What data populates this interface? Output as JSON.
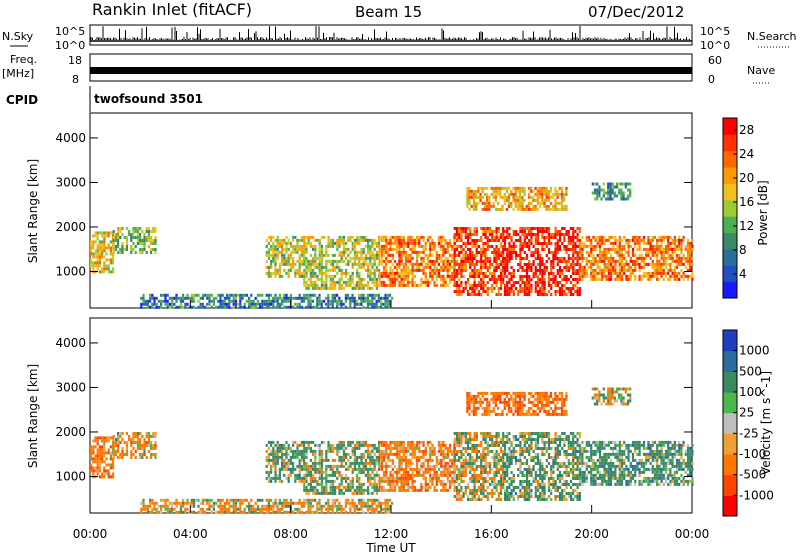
{
  "header": {
    "station": "Rankin Inlet (fitACF)",
    "beam": "Beam 15",
    "date": "07/Dec/2012"
  },
  "top_panels": {
    "nsky_label": "N.Sky",
    "nsky_ticks": [
      "10^5",
      "10^0"
    ],
    "nsearch_label": "N.Search",
    "nsearch_ticks": [
      "10^5",
      "10^0"
    ],
    "freq_label_1": "Freq.",
    "freq_label_2": "[MHz]",
    "freq_ticks": [
      "18",
      "8"
    ],
    "nave_label": "Nave",
    "nave_ticks": [
      "60",
      "0"
    ],
    "cpid_label": "CPID",
    "cpid_value": "twofsound 3501"
  },
  "chart_data": [
    {
      "type": "heatmap",
      "panel": "power",
      "title": "",
      "xlabel": "Time UT",
      "ylabel": "Slant Range [km]",
      "x_ticks": [
        "00:00",
        "04:00",
        "08:00",
        "12:00",
        "16:00",
        "20:00",
        "00:00"
      ],
      "xlim_hours": [
        0,
        24
      ],
      "y_ticks": [
        1000,
        2000,
        3000,
        4000
      ],
      "ylim_km": [
        180,
        4560
      ],
      "colorbar": {
        "label": "Power [dB]",
        "ticks": [
          "4",
          "8",
          "12",
          "16",
          "20",
          "24",
          "28"
        ],
        "range": [
          0,
          30
        ],
        "colors": [
          "#1a1aff",
          "#1f4fbf",
          "#2a6e9a",
          "#3a8a6a",
          "#4caf50",
          "#9acd32",
          "#f0c020",
          "#ff9900",
          "#ff6600",
          "#ff3300",
          "#ff0000"
        ]
      },
      "regions": [
        {
          "t": [
            0.0,
            0.9
          ],
          "r": [
            1000,
            1900
          ],
          "v": 18
        },
        {
          "t": [
            0.9,
            2.6
          ],
          "r": [
            1400,
            2000
          ],
          "v": 14
        },
        {
          "t": [
            7.0,
            8.5
          ],
          "r": [
            900,
            1800
          ],
          "v": 16
        },
        {
          "t": [
            8.5,
            11.5
          ],
          "r": [
            600,
            1800
          ],
          "v": 16
        },
        {
          "t": [
            11.5,
            14.5
          ],
          "r": [
            700,
            1800
          ],
          "v": 22
        },
        {
          "t": [
            14.5,
            16.5
          ],
          "r": [
            500,
            2000
          ],
          "v": 26
        },
        {
          "t": [
            16.5,
            19.5
          ],
          "r": [
            500,
            2000
          ],
          "v": 28
        },
        {
          "t": [
            19.5,
            24.0
          ],
          "r": [
            800,
            1800
          ],
          "v": 22
        },
        {
          "t": [
            2.0,
            12.0
          ],
          "r": [
            200,
            500
          ],
          "v": 8
        },
        {
          "t": [
            15.0,
            19.0
          ],
          "r": [
            2400,
            2900
          ],
          "v": 20
        },
        {
          "t": [
            20.0,
            21.5
          ],
          "r": [
            2600,
            3000
          ],
          "v": 10
        }
      ]
    },
    {
      "type": "heatmap",
      "panel": "velocity",
      "title": "",
      "xlabel": "Time UT",
      "ylabel": "Slant Range [km]",
      "x_ticks": [
        "00:00",
        "04:00",
        "08:00",
        "12:00",
        "16:00",
        "20:00",
        "00:00"
      ],
      "xlim_hours": [
        0,
        24
      ],
      "y_ticks": [
        1000,
        2000,
        3000,
        4000
      ],
      "ylim_km": [
        180,
        4560
      ],
      "colorbar": {
        "label": "Velocity [m s^-1]",
        "ticks": [
          "1000",
          "500",
          "100",
          "25",
          "-25",
          "-100",
          "-500",
          "-1000"
        ],
        "colors": [
          "#1f3fbf",
          "#2a6ea0",
          "#3a8a60",
          "#4cb84c",
          "#bebebe",
          "#f0a030",
          "#ff7700",
          "#ff4400",
          "#ff0000"
        ]
      },
      "regions": [
        {
          "t": [
            0.0,
            0.9
          ],
          "r": [
            1000,
            1900
          ],
          "v": -300
        },
        {
          "t": [
            0.9,
            2.6
          ],
          "r": [
            1400,
            2000
          ],
          "v": -200
        },
        {
          "t": [
            7.0,
            8.5
          ],
          "r": [
            900,
            1800
          ],
          "v": 200
        },
        {
          "t": [
            8.5,
            11.5
          ],
          "r": [
            600,
            1800
          ],
          "v": 150
        },
        {
          "t": [
            11.5,
            14.5
          ],
          "r": [
            700,
            1800
          ],
          "v": -300
        },
        {
          "t": [
            14.5,
            16.5
          ],
          "r": [
            500,
            2000
          ],
          "v": 0
        },
        {
          "t": [
            16.5,
            19.5
          ],
          "r": [
            500,
            2000
          ],
          "v": 200
        },
        {
          "t": [
            19.5,
            24.0
          ],
          "r": [
            800,
            1800
          ],
          "v": 250
        },
        {
          "t": [
            2.0,
            12.0
          ],
          "r": [
            200,
            500
          ],
          "v": -150
        },
        {
          "t": [
            15.0,
            19.0
          ],
          "r": [
            2400,
            2900
          ],
          "v": -400
        },
        {
          "t": [
            20.0,
            21.5
          ],
          "r": [
            2600,
            3000
          ],
          "v": 0
        }
      ]
    }
  ]
}
